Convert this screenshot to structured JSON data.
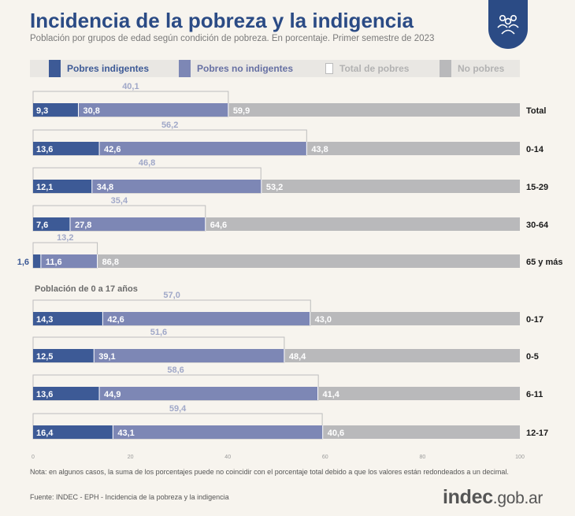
{
  "header": {
    "title": "Incidencia de la pobreza y la indigencia",
    "subtitle": "Población por grupos de edad según condición de pobreza. En porcentaje. Primer semestre de 2023"
  },
  "badge": {
    "icon": "people-group-icon"
  },
  "colors": {
    "indigentes": "#3d5a96",
    "no_indigentes": "#7d87b5",
    "no_pobres": "#b9b9bb",
    "total_outline": "#bdbdbd",
    "total_label": "#a0a8c8",
    "title": "#2b4b85"
  },
  "legend": {
    "indigentes": "Pobres indigentes",
    "no_indigentes": "Pobres no indigentes",
    "total": "Total de pobres",
    "no_pobres": "No pobres"
  },
  "chart_data": {
    "type": "bar",
    "orientation": "horizontal",
    "stacked": true,
    "xlim": [
      0,
      100
    ],
    "x_ticks": [
      "0",
      "20",
      "40",
      "60",
      "80",
      "100"
    ],
    "section_label": "Población de 0 a 17 años",
    "series_names": [
      "Pobres indigentes",
      "Pobres no indigentes",
      "No pobres",
      "Total de pobres"
    ],
    "categories": [
      {
        "label": "Total",
        "indigentes": "9,3",
        "no_indigentes": "30,8",
        "no_pobres": "59,9",
        "total": "40,1"
      },
      {
        "label": "0-14",
        "indigentes": "13,6",
        "no_indigentes": "42,6",
        "no_pobres": "43,8",
        "total": "56,2"
      },
      {
        "label": "15-29",
        "indigentes": "12,1",
        "no_indigentes": "34,8",
        "no_pobres": "53,2",
        "total": "46,8"
      },
      {
        "label": "30-64",
        "indigentes": "7,6",
        "no_indigentes": "27,8",
        "no_pobres": "64,6",
        "total": "35,4"
      },
      {
        "label": "65 y más",
        "indigentes": "1,6",
        "no_indigentes": "11,6",
        "no_pobres": "86,8",
        "total": "13,2"
      },
      {
        "label": "0-17",
        "indigentes": "14,3",
        "no_indigentes": "42,6",
        "no_pobres": "43,0",
        "total": "57,0"
      },
      {
        "label": "0-5",
        "indigentes": "12,5",
        "no_indigentes": "39,1",
        "no_pobres": "48,4",
        "total": "51,6"
      },
      {
        "label": "6-11",
        "indigentes": "13,6",
        "no_indigentes": "44,9",
        "no_pobres": "41,4",
        "total": "58,6"
      },
      {
        "label": "12-17",
        "indigentes": "16,4",
        "no_indigentes": "43,1",
        "no_pobres": "40,6",
        "total": "59,4"
      }
    ]
  },
  "footer": {
    "note": "Nota: en algunos casos, la suma de los porcentajes puede no coincidir con el porcentaje total debido a que los valores están redondeados a un decimal.",
    "source": "Fuente: INDEC - EPH - Incidencia de la pobreza y la indigencia",
    "logo_strong": "indec",
    "logo_light": ".gob.ar"
  }
}
